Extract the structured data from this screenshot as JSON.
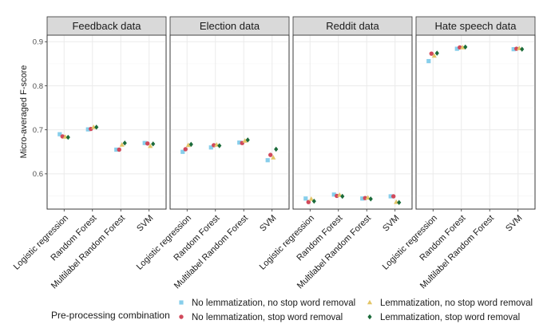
{
  "chart_data": {
    "type": "scatter",
    "ylabel": "Micro-averaged F-score",
    "ylim": [
      0.52,
      0.915
    ],
    "yticks": [
      0.6,
      0.7,
      0.8,
      0.9
    ],
    "ytick_labels": [
      "0.6",
      "0.7",
      "0.8",
      "0.9"
    ],
    "categories": [
      "Logistic regression",
      "Random Forest",
      "Multilabel Random Forest",
      "SVM"
    ],
    "grid": true,
    "legend": {
      "title": "Pre-processing combination",
      "position": "bottom"
    },
    "series": [
      {
        "name": "No lemmatization, no stop word removal",
        "marker": "square",
        "color": "#87CEEB"
      },
      {
        "name": "No lemmatization, stop word removal",
        "marker": "circle",
        "color": "#D1495B"
      },
      {
        "name": "Lemmatization, no stop word removal",
        "marker": "triangle",
        "color": "#E3C567"
      },
      {
        "name": "Lemmatization, stop word removal",
        "marker": "diamond",
        "color": "#1B6B3A"
      }
    ],
    "panels": [
      {
        "title": "Feedback data",
        "values": [
          [
            0.69,
            0.701,
            0.655,
            0.67
          ],
          [
            0.685,
            0.702,
            0.655,
            0.669
          ],
          [
            0.684,
            0.706,
            0.666,
            0.663
          ],
          [
            0.683,
            0.706,
            0.67,
            0.668
          ]
        ]
      },
      {
        "title": "Election data",
        "values": [
          [
            0.65,
            0.66,
            0.671,
            0.631
          ],
          [
            0.656,
            0.665,
            0.67,
            0.643
          ],
          [
            0.665,
            0.666,
            0.675,
            0.637
          ],
          [
            0.667,
            0.664,
            0.677,
            0.656
          ]
        ]
      },
      {
        "title": "Reddit data",
        "values": [
          [
            0.544,
            0.553,
            0.544,
            0.549
          ],
          [
            0.536,
            0.55,
            0.545,
            0.549
          ],
          [
            0.543,
            0.552,
            0.546,
            0.536
          ],
          [
            0.538,
            0.549,
            0.543,
            0.535
          ]
        ]
      },
      {
        "title": "Hate speech data",
        "values": [
          [
            0.856,
            0.884,
            null,
            0.883
          ],
          [
            0.873,
            0.887,
            null,
            0.884
          ],
          [
            0.868,
            0.887,
            null,
            0.885
          ],
          [
            0.874,
            0.888,
            null,
            0.883
          ]
        ]
      }
    ]
  }
}
